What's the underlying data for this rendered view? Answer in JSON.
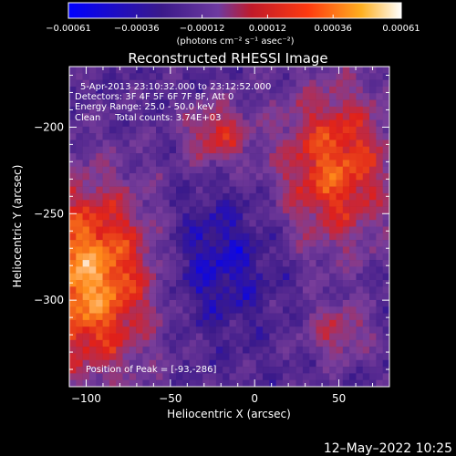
{
  "chart_data": {
    "type": "heatmap",
    "title": "Reconstructed RHESSI Image",
    "xlabel": "Heliocentric X (arcsec)",
    "ylabel": "Heliocentric Y (arcsec)",
    "xlim": [
      -110,
      80
    ],
    "ylim": [
      -350,
      -165
    ],
    "x_ticks": [
      -100,
      -50,
      0,
      50
    ],
    "x_tick_labels": [
      "−100",
      "−50",
      "0",
      "50"
    ],
    "y_ticks": [
      -200,
      -250,
      -300
    ],
    "y_tick_labels": [
      "−200",
      "−250",
      "−300"
    ],
    "colorbar": {
      "range": [
        -0.00061,
        0.00061
      ],
      "ticks": [
        -0.00061,
        -0.00036,
        -0.00012,
        0.00012,
        0.00036,
        0.00061
      ],
      "tick_labels": [
        "−0.00061",
        "−0.00036",
        "−0.00012",
        "0.00012",
        "0.00036",
        "0.00061"
      ],
      "unit_label": "(photons cm⁻² s⁻¹ asec⁻²)"
    },
    "annotations": [
      "5-Apr-2013 23:10:32.000 to 23:12:52.000",
      "Detectors: 3F 4F 5F 6F 7F 8F, Att 0",
      "Energy Range: 25.0 - 50.0 keV",
      "Clean     Total counts: 3.74E+03"
    ],
    "peak_label": "Position of Peak = [-93,-286]",
    "peak_position": [
      -93,
      -286
    ],
    "colors": {
      "colormap": [
        "#0000ff",
        "#3b1a8a",
        "#7a3e9a",
        "#e0201a",
        "#ff8c1a",
        "#ffffff"
      ],
      "text": "#ffffff"
    }
  },
  "footer": {
    "date": "12–May–2022 10:25"
  }
}
